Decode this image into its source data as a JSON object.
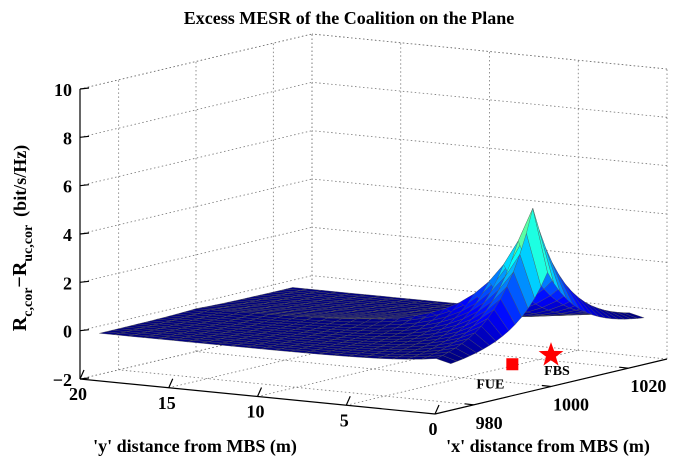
{
  "chart_data": {
    "type": "surface3d",
    "title": "Excess MESR of the Coalition on the Plane",
    "xlabel": "'x' distance from MBS (m)",
    "ylabel": "'y' distance from MBS (m)",
    "zlabel": {
      "R": "R",
      "sub1": "c,cor",
      "minus": "−R",
      "sub2": "uc,cor",
      "unit": "(bit/s/Hz)"
    },
    "zticks": [
      {
        "value": -2,
        "label": "−2"
      },
      {
        "value": 0,
        "label": "0"
      },
      {
        "value": 2,
        "label": "2"
      },
      {
        "value": 4,
        "label": "4"
      },
      {
        "value": 6,
        "label": "6"
      },
      {
        "value": 8,
        "label": "8"
      },
      {
        "value": 10,
        "label": "10"
      }
    ],
    "yticks": [
      {
        "value": 20,
        "label": "20"
      },
      {
        "value": 15,
        "label": "15"
      },
      {
        "value": 10,
        "label": "10"
      },
      {
        "value": 5,
        "label": "5"
      },
      {
        "value": 0,
        "label": "0"
      }
    ],
    "xticks": [
      {
        "value": 980,
        "label": "980"
      },
      {
        "value": 1000,
        "label": "1000"
      },
      {
        "value": 1020,
        "label": "1020"
      }
    ],
    "xlim": [
      970,
      1030
    ],
    "ylim": [
      0,
      20
    ],
    "zlim": [
      -2,
      10
    ],
    "grid": true,
    "colormap": "jet",
    "surface_color_limits": [
      0,
      9
    ],
    "surface_peak": {
      "x": 1000,
      "y": 0,
      "z": 9.6
    },
    "surface_baseline_z": 0,
    "markers": [
      {
        "label": "FUE",
        "shape": "square",
        "color": "#ff0000",
        "x": 990,
        "y": 0,
        "z": -0.7
      },
      {
        "label": "FBS",
        "shape": "star",
        "color": "#ff0000",
        "x": 1000,
        "y": 0,
        "z": -0.7
      }
    ]
  }
}
